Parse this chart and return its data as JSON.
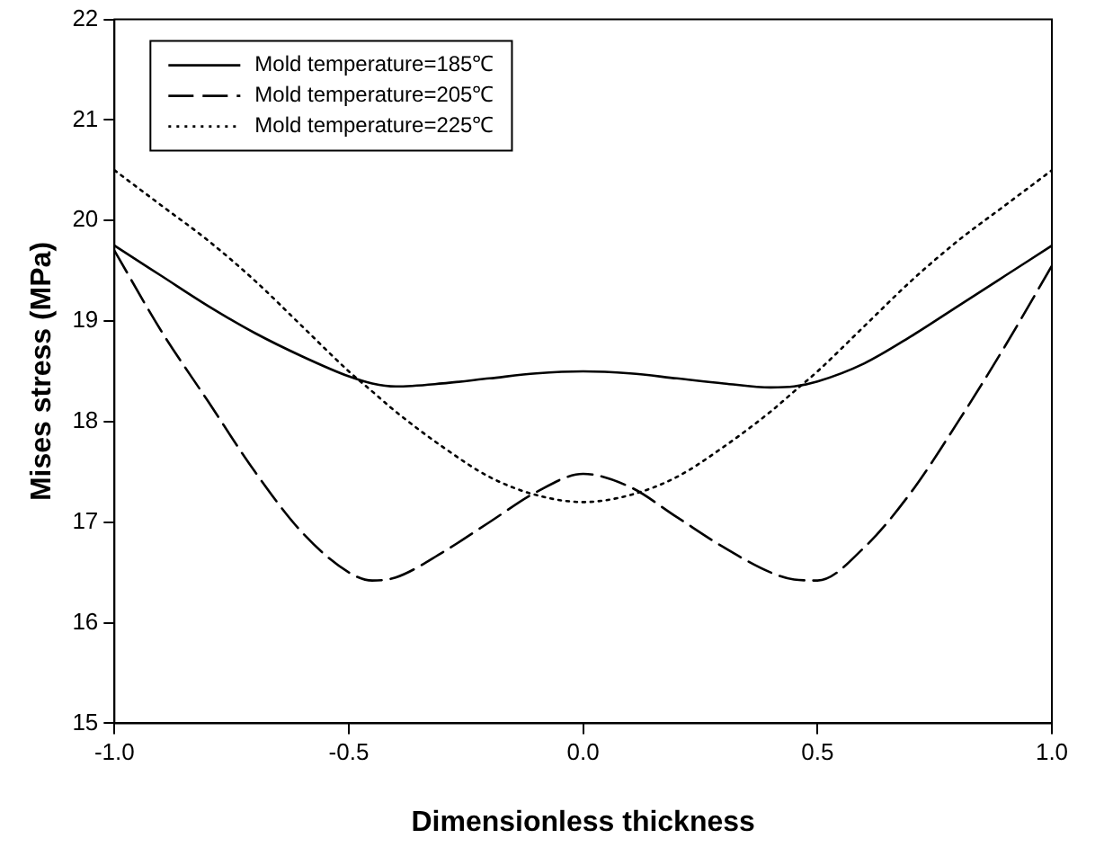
{
  "chart_data": {
    "type": "line",
    "xlabel": "Dimensionless thickness",
    "ylabel": "Mises stress (MPa)",
    "x": [
      -1,
      -0.9,
      -0.8,
      -0.7,
      -0.6,
      -0.5,
      -0.45,
      -0.4,
      -0.3,
      -0.2,
      -0.1,
      0,
      0.1,
      0.2,
      0.3,
      0.4,
      0.45,
      0.5,
      0.6,
      0.7,
      0.8,
      0.9,
      1
    ],
    "series": [
      {
        "name": "Mold temperature=185℃",
        "color": "#000000",
        "line_style": "solid",
        "values": [
          19.75,
          19.45,
          19.15,
          18.88,
          18.65,
          18.45,
          18.38,
          18.35,
          18.38,
          18.43,
          18.48,
          18.5,
          18.48,
          18.43,
          18.38,
          18.34,
          18.35,
          18.4,
          18.58,
          18.85,
          19.15,
          19.45,
          19.75
        ]
      },
      {
        "name": "Mold temperature=205℃",
        "color": "#000000",
        "line_style": "dashed",
        "values": [
          19.7,
          18.9,
          18.2,
          17.5,
          16.9,
          16.5,
          16.42,
          16.45,
          16.7,
          17.0,
          17.3,
          17.48,
          17.35,
          17.05,
          16.75,
          16.5,
          16.43,
          16.42,
          16.75,
          17.3,
          18.0,
          18.75,
          19.55
        ]
      },
      {
        "name": "Mold temperature=225℃",
        "color": "#000000",
        "line_style": "dotted",
        "values": [
          20.5,
          20.15,
          19.8,
          19.4,
          18.95,
          18.5,
          18.3,
          18.1,
          17.75,
          17.45,
          17.27,
          17.2,
          17.27,
          17.45,
          17.75,
          18.1,
          18.3,
          18.5,
          18.95,
          19.4,
          19.8,
          20.15,
          20.5
        ]
      }
    ],
    "xlim": [
      -1,
      1
    ],
    "xticks": [
      {
        "value": -1,
        "label": "-1.0"
      },
      {
        "value": -0.5,
        "label": "-0.5"
      },
      {
        "value": 0,
        "label": "0.0"
      },
      {
        "value": 0.5,
        "label": "0.5"
      },
      {
        "value": 1,
        "label": "1.0"
      }
    ],
    "ylim": [
      15,
      22
    ],
    "yticks": [
      15,
      16,
      17,
      18,
      19,
      20,
      21,
      22
    ],
    "grid": false,
    "legend": "top left",
    "marker": "none"
  }
}
